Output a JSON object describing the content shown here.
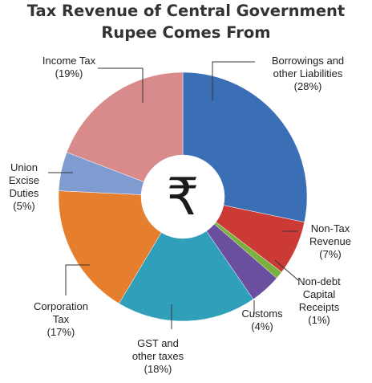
{
  "chart_data": {
    "type": "pie",
    "title": [
      "Tax Revenue of Central Government",
      "Rupee Comes From"
    ],
    "center_symbol": "₹",
    "slices": [
      {
        "name": "Borrowings and other Liabilities",
        "label_lines": [
          "Borrowings and",
          "other Liabilities",
          "(28%)"
        ],
        "value": 28,
        "color": "#3a6fb5"
      },
      {
        "name": "Non-Tax Revenue",
        "label_lines": [
          "Non-Tax",
          "Revenue",
          "(7%)"
        ],
        "value": 7,
        "color": "#cc3a36"
      },
      {
        "name": "Non-debt Capital Receipts",
        "label_lines": [
          "Non-debt",
          "Capital",
          "Receipts",
          "(1%)"
        ],
        "value": 1,
        "color": "#7ab03d"
      },
      {
        "name": "Customs",
        "label_lines": [
          "Customs",
          "(4%)"
        ],
        "value": 4,
        "color": "#6a4f9e"
      },
      {
        "name": "GST and other taxes",
        "label_lines": [
          "GST and",
          "other taxes",
          "(18%)"
        ],
        "value": 18,
        "color": "#2f9fba"
      },
      {
        "name": "Corporation Tax",
        "label_lines": [
          "Corporation",
          "Tax",
          "(17%)"
        ],
        "value": 17,
        "color": "#e57e2d"
      },
      {
        "name": "Union Excise Duties",
        "label_lines": [
          "Union",
          "Excise",
          "Duties",
          "(5%)"
        ],
        "value": 5,
        "color": "#7f9cd0"
      },
      {
        "name": "Income Tax",
        "label_lines": [
          "Income Tax",
          "(19%)"
        ],
        "value": 19,
        "color": "#d98a8a"
      }
    ]
  }
}
